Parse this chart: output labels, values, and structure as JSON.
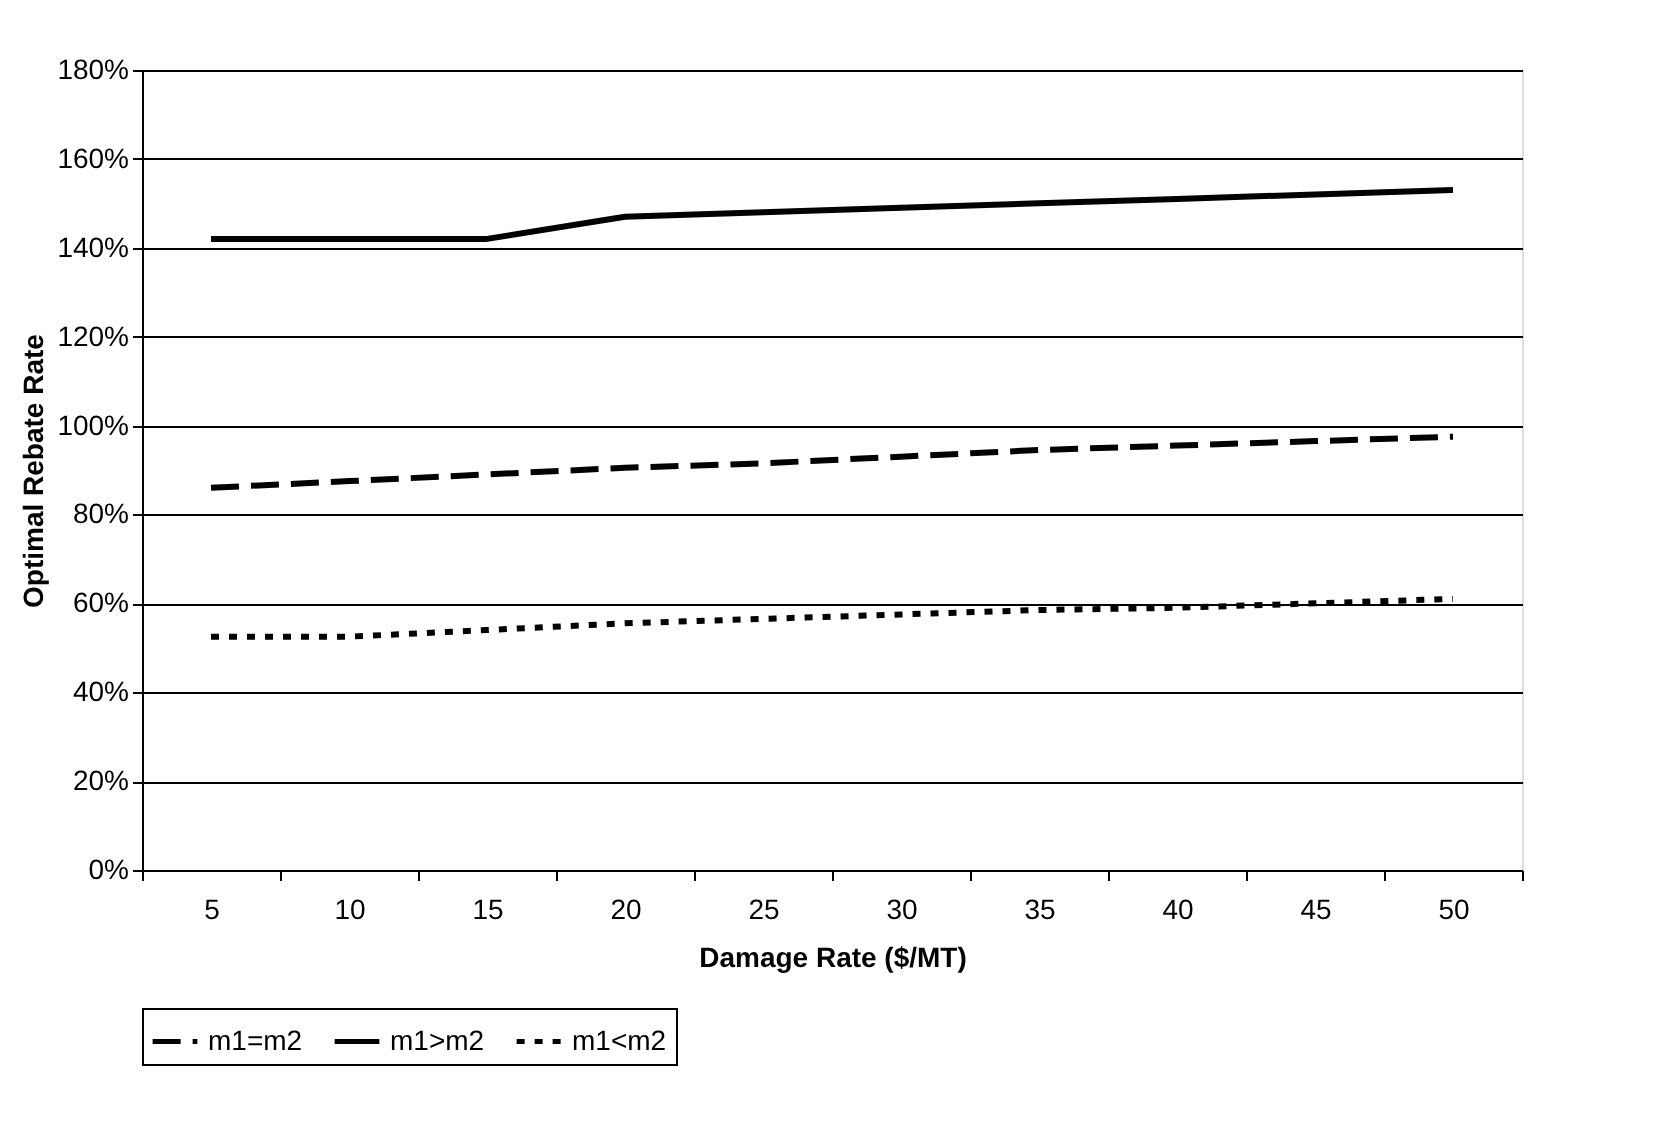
{
  "chart_data": {
    "type": "line",
    "xlabel": "Damage Rate ($/MT)",
    "ylabel": "Optimal Rebate Rate",
    "categories": [
      "5",
      "10",
      "15",
      "20",
      "25",
      "30",
      "35",
      "40",
      "45",
      "50"
    ],
    "series": [
      {
        "name": "m1=m2",
        "color": "#000000",
        "line_style": "dashed",
        "values": [
          86,
          87.5,
          89,
          90.5,
          91.5,
          93,
          94.5,
          95.5,
          96.5,
          97.5
        ]
      },
      {
        "name": "m1>m2",
        "color": "#000000",
        "line_style": "solid",
        "values": [
          142,
          142,
          142,
          147,
          148,
          149,
          150,
          151,
          152,
          153
        ]
      },
      {
        "name": "m1<m2",
        "color": "#000000",
        "line_style": "dotted",
        "values": [
          52.5,
          52.5,
          54,
          55.5,
          56.5,
          57.5,
          58.5,
          59,
          60,
          61
        ]
      }
    ],
    "ylim": [
      0,
      180
    ],
    "yticks": [
      {
        "value": 0,
        "label": "0%"
      },
      {
        "value": 20,
        "label": "20%"
      },
      {
        "value": 40,
        "label": "40%"
      },
      {
        "value": 60,
        "label": "60%"
      },
      {
        "value": 80,
        "label": "80%"
      },
      {
        "value": 100,
        "label": "100%"
      },
      {
        "value": 120,
        "label": "120%"
      },
      {
        "value": 140,
        "label": "140%"
      },
      {
        "value": 160,
        "label": "160%"
      },
      {
        "value": 180,
        "label": "180%"
      }
    ],
    "grid": "y",
    "legend": "bottom",
    "marker": "none"
  }
}
